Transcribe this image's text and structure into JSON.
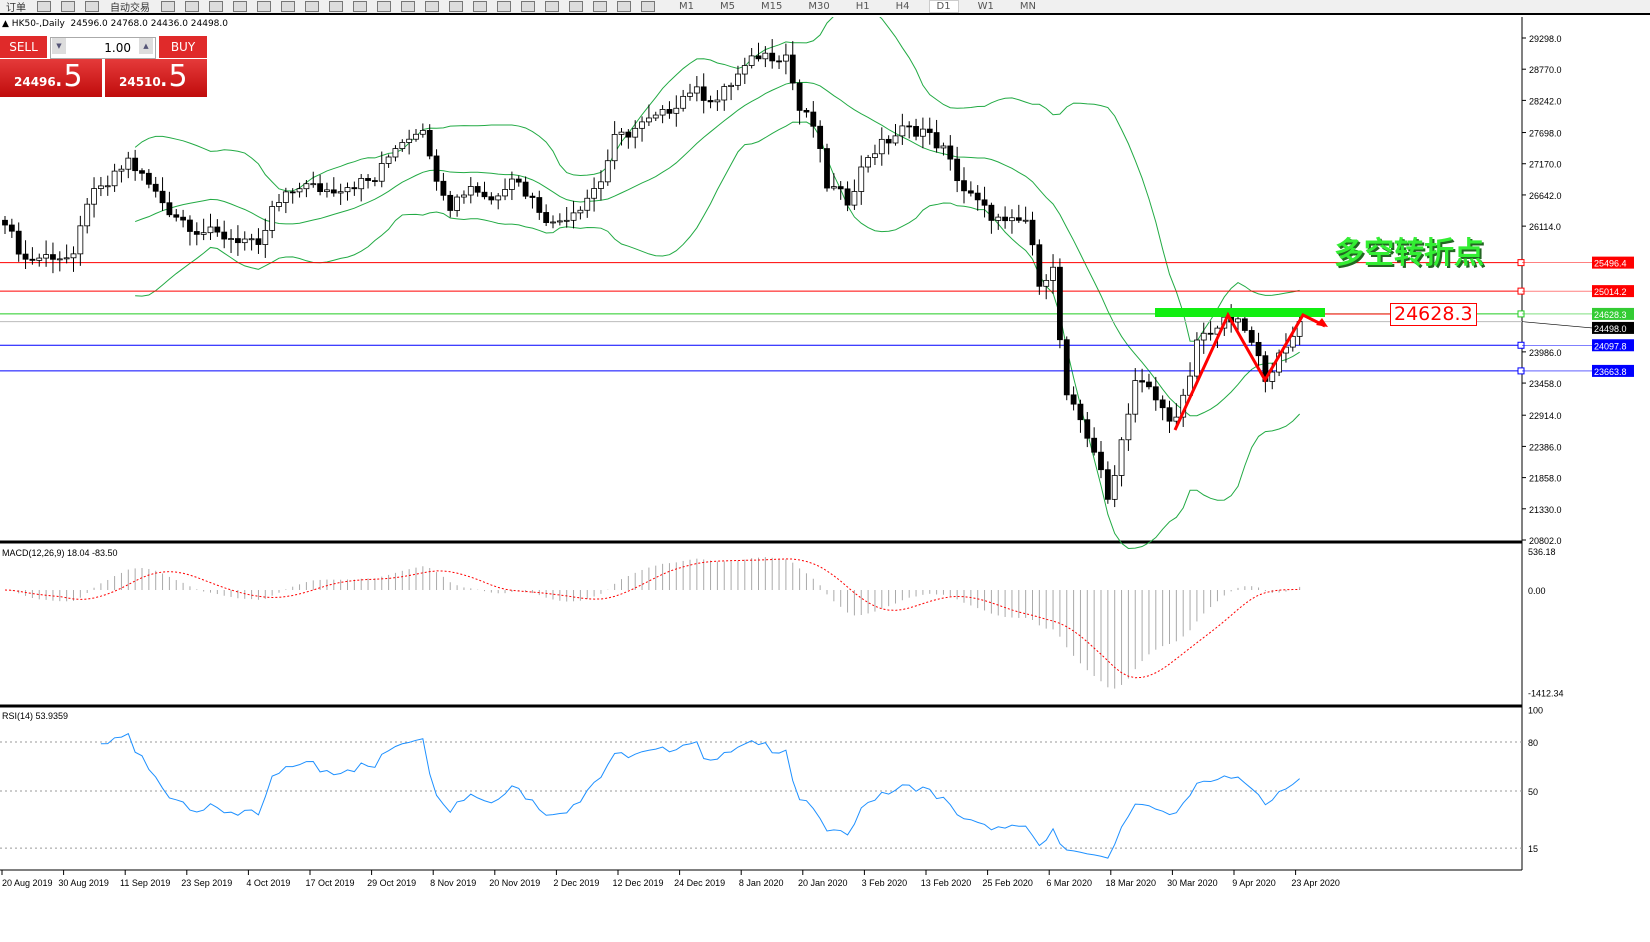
{
  "toolbar": {
    "items": [
      "订单",
      "自动交易"
    ],
    "timeframes": [
      "M1",
      "M5",
      "M15",
      "M30",
      "H1",
      "H4",
      "D1",
      "W1",
      "MN"
    ],
    "active_timeframe": "D1"
  },
  "header": {
    "symbol": "HK50-,Daily",
    "ohlc": "24596.0 24768.0 24436.0 24498.0"
  },
  "trade": {
    "sell_label": "SELL",
    "buy_label": "BUY",
    "lot": "1.00",
    "sell_main": "24496",
    "sell_frac": ".5",
    "buy_main": "24510",
    "buy_frac": ".5"
  },
  "annotation": {
    "text": "多空转折点",
    "price_box": "24628.3"
  },
  "colors": {
    "bull": "#ffffff",
    "bear": "#000000",
    "bands": "#22aa44",
    "resistance": "#ff0000",
    "key_level": "#22cc22",
    "support": "#0000ff",
    "macd_signal": "#ff0000",
    "rsi": "#1e90ff"
  },
  "chart_data": {
    "type": "candlestick",
    "symbol": "HK50-",
    "timeframe": "Daily",
    "price_axis": {
      "ticks": [
        "29298.0",
        "28770.0",
        "28242.0",
        "27698.0",
        "27170.0",
        "26642.0",
        "26114.0",
        "23986.0",
        "23458.0",
        "22914.0",
        "22386.0",
        "21858.0",
        "21330.0",
        "20802.0"
      ],
      "range": [
        20802,
        29298
      ]
    },
    "date_ticks": [
      "20 Aug 2019",
      "30 Aug 2019",
      "11 Sep 2019",
      "23 Sep 2019",
      "4 Oct 2019",
      "17 Oct 2019",
      "29 Oct 2019",
      "8 Nov 2019",
      "20 Nov 2019",
      "2 Dec 2019",
      "12 Dec 2019",
      "24 Dec 2019",
      "8 Jan 2020",
      "20 Jan 2020",
      "3 Feb 2020",
      "13 Feb 2020",
      "25 Feb 2020",
      "6 Mar 2020",
      "18 Mar 2020",
      "30 Mar 2020",
      "9 Apr 2020",
      "23 Apr 2020"
    ],
    "close_keypoints": [
      [
        0,
        26133
      ],
      [
        3,
        25541
      ],
      [
        7,
        25626
      ],
      [
        10,
        25541
      ],
      [
        12,
        26556
      ],
      [
        15,
        26810
      ],
      [
        18,
        27233
      ],
      [
        21,
        26810
      ],
      [
        24,
        26387
      ],
      [
        28,
        26049
      ],
      [
        31,
        25964
      ],
      [
        35,
        25879
      ],
      [
        37,
        25710
      ],
      [
        39,
        26387
      ],
      [
        43,
        26810
      ],
      [
        47,
        26725
      ],
      [
        50,
        26810
      ],
      [
        54,
        26895
      ],
      [
        57,
        27487
      ],
      [
        61,
        27826
      ],
      [
        62,
        27233
      ],
      [
        65,
        26472
      ],
      [
        68,
        26810
      ],
      [
        71,
        26556
      ],
      [
        74,
        26979
      ],
      [
        77,
        26556
      ],
      [
        80,
        26133
      ],
      [
        84,
        26472
      ],
      [
        87,
        26895
      ],
      [
        89,
        27572
      ],
      [
        93,
        27826
      ],
      [
        96,
        27995
      ],
      [
        100,
        28418
      ],
      [
        104,
        28249
      ],
      [
        107,
        28672
      ],
      [
        110,
        29010
      ],
      [
        114,
        29010
      ],
      [
        116,
        28080
      ],
      [
        118,
        27826
      ],
      [
        120,
        26810
      ],
      [
        123,
        26556
      ],
      [
        126,
        27318
      ],
      [
        131,
        27741
      ],
      [
        134,
        27741
      ],
      [
        137,
        27403
      ],
      [
        140,
        26725
      ],
      [
        143,
        26387
      ],
      [
        146,
        26133
      ],
      [
        149,
        26218
      ],
      [
        151,
        25202
      ],
      [
        153,
        25372
      ],
      [
        154,
        24187
      ],
      [
        155,
        23172
      ],
      [
        157,
        22833
      ],
      [
        159,
        22325
      ],
      [
        161,
        21479
      ],
      [
        163,
        22495
      ],
      [
        165,
        23510
      ],
      [
        167,
        23341
      ],
      [
        169,
        23003
      ],
      [
        171,
        22833
      ],
      [
        173,
        23510
      ],
      [
        174,
        24187
      ],
      [
        176,
        24356
      ],
      [
        179,
        24526
      ],
      [
        181,
        24356
      ],
      [
        183,
        23849
      ],
      [
        184,
        23595
      ],
      [
        187,
        24018
      ],
      [
        189,
        24498
      ]
    ],
    "bollinger_bands": true,
    "hlines": [
      {
        "price": "25496.4",
        "color": "#ff0000"
      },
      {
        "price": "25014.2",
        "color": "#ff0000"
      },
      {
        "price": "24628.3",
        "color": "#22cc22"
      },
      {
        "price": "24498.0",
        "color": "#000000"
      },
      {
        "price": "24097.8",
        "color": "#0000ff"
      },
      {
        "price": "23663.8",
        "color": "#0000ff"
      }
    ],
    "macd": {
      "label": "MACD(12,26,9) 18.04 -83.50",
      "ticks": [
        "536.18",
        "0.00",
        "-1412.34"
      ],
      "range": [
        -1412.34,
        536.18
      ]
    },
    "rsi": {
      "label": "RSI(14) 53.9359",
      "ticks": [
        "100",
        "80",
        "50",
        "15"
      ],
      "levels": [
        80,
        50,
        15
      ]
    }
  }
}
